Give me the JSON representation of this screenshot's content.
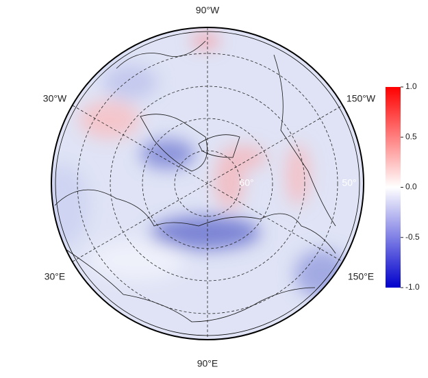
{
  "map": {
    "meridian_labels": {
      "top": "90°W",
      "upper_left": "30°W",
      "upper_right": "150°W",
      "lower_left": "30°E",
      "lower_right": "150°E",
      "bottom": "90°E"
    },
    "latitude_labels": [
      "60°",
      "50°"
    ],
    "colorbar": {
      "lim": [
        -1,
        1
      ],
      "ticks": [
        {
          "value": 1,
          "label": "1.0"
        },
        {
          "value": 0.5,
          "label": "0.5"
        },
        {
          "value": 0,
          "label": "0.0"
        },
        {
          "value": -0.5,
          "label": "-0.5"
        },
        {
          "value": -1,
          "label": "-1.0"
        }
      ]
    }
  }
}
